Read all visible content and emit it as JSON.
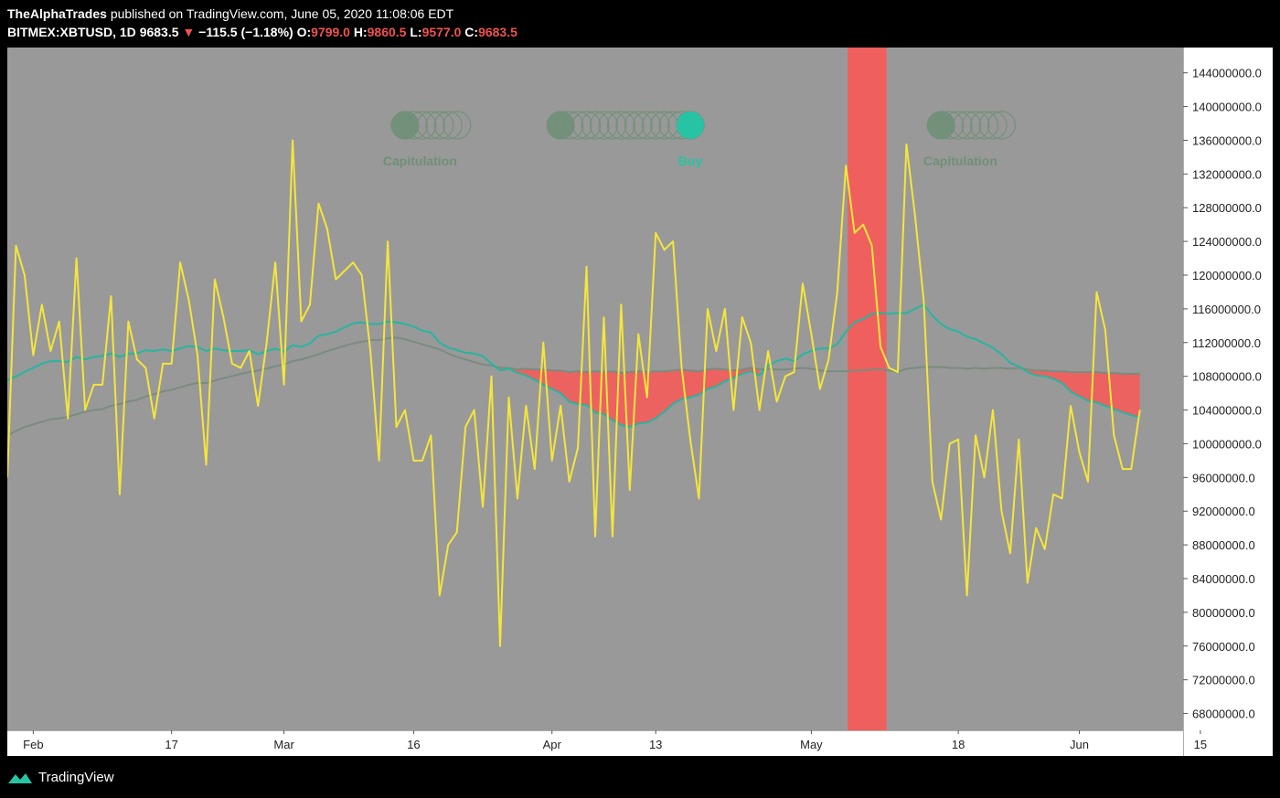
{
  "header": {
    "author": "TheAlphaTrades",
    "published": "published on TradingView.com, June 05, 2020 11:08:06 EDT",
    "symbol": "BITMEX:XBTUSD, 1D",
    "last": "9683.5",
    "change": "−115.5 (−1.18%)",
    "o_label": "O:",
    "o": "9799.0",
    "h_label": "H:",
    "h": "9860.5",
    "l_label": "L:",
    "l": "9577.0",
    "c_label": "C:",
    "c": "9683.5"
  },
  "footer": {
    "brand": "TradingView"
  },
  "colors": {
    "plot_bg": "#999999",
    "price_line": "#f5e63a",
    "fast_ma": "#26b5a0",
    "slow_ma": "#7a8c80",
    "fill": "#ef5f5d",
    "band": "#ef5f5d",
    "signal_dot": "#6f8f78",
    "signal_active": "#26c4a4"
  },
  "chart_data": {
    "type": "line",
    "ylim": [
      66000000,
      147000000
    ],
    "yticks": [
      "144000000.0",
      "140000000.0",
      "136000000.0",
      "132000000.0",
      "128000000.0",
      "124000000.0",
      "120000000.0",
      "116000000.0",
      "112000000.0",
      "108000000.0",
      "104000000.0",
      "100000000.0",
      "96000000.0",
      "92000000.0",
      "88000000.0",
      "84000000.0",
      "80000000.0",
      "76000000.0",
      "72000000.0",
      "68000000.0"
    ],
    "xlim": [
      0,
      136
    ],
    "xticks": [
      {
        "label": "Feb",
        "x": 3
      },
      {
        "label": "17",
        "x": 19
      },
      {
        "label": "Mar",
        "x": 32
      },
      {
        "label": "16",
        "x": 47
      },
      {
        "label": "Apr",
        "x": 63
      },
      {
        "label": "13",
        "x": 75
      },
      {
        "label": "May",
        "x": 93
      },
      {
        "label": "18",
        "x": 110
      },
      {
        "label": "Jun",
        "x": 124
      },
      {
        "label": "15",
        "x": 138
      }
    ],
    "series": [
      {
        "values": [
          96000000,
          123500000,
          120000000,
          110500000,
          116500000,
          111000000,
          114500000,
          103000000,
          122000000,
          104000000,
          107000000,
          107000000,
          117500000,
          94000000,
          114500000,
          110000000,
          109000000,
          103000000,
          109500000,
          109500000,
          121500000,
          117000000,
          110500000,
          97500000,
          119500000,
          115000000,
          109500000,
          109000000,
          111000000,
          104500000,
          112000000,
          121500000,
          107000000,
          136000000,
          114500000,
          116500000,
          128500000,
          125500000,
          119500000,
          120500000,
          121500000,
          120000000,
          111000000,
          98000000,
          124000000,
          102000000,
          104000000,
          98000000,
          98000000,
          101000000,
          82000000,
          88000000,
          89500000,
          102000000,
          104000000,
          92500000,
          108000000,
          76000000,
          105500000,
          93500000,
          104500000,
          97000000,
          112000000,
          98000000,
          104500000,
          95500000,
          99500000,
          121000000,
          89000000,
          115000000,
          89000000,
          116500000,
          94500000,
          113000000,
          105500000,
          125000000,
          123000000,
          124000000,
          109000000,
          100500000,
          93500000,
          116000000,
          111000000,
          116000000,
          104000000,
          115000000,
          112000000,
          104000000,
          111000000,
          105000000,
          108000000,
          108500000,
          119000000,
          113000000,
          106500000,
          110000000,
          118000000,
          133000000,
          125000000,
          126000000,
          123500000,
          111500000,
          109000000,
          108500000,
          135500000,
          127000000,
          117000000,
          95500000,
          91000000,
          100000000,
          100500000,
          82000000,
          101000000,
          96000000,
          104000000,
          92000000,
          87000000,
          100500000,
          83500000,
          90000000,
          87500000,
          94000000,
          93500000,
          104500000,
          99000000,
          95500000,
          118000000,
          113500000,
          101000000,
          97000000,
          97000000,
          104000000
        ]
      },
      {
        "values": [
          107500000,
          108000000,
          108500000,
          109000000,
          109500000,
          109800000,
          109800000,
          109700000,
          110300000,
          110000000,
          110300000,
          110400000,
          110700000,
          110300000,
          110700000,
          110700000,
          111100000,
          111000000,
          111200000,
          111000000,
          111300000,
          111600000,
          111500000,
          111000000,
          111300000,
          111100000,
          111000000,
          111000000,
          111100000,
          110600000,
          111000000,
          111300000,
          110900000,
          111700000,
          111500000,
          111900000,
          112800000,
          113000000,
          113300000,
          113800000,
          114300000,
          114400000,
          114200000,
          114200000,
          114500000,
          114400000,
          114200000,
          113900000,
          113400000,
          113200000,
          112000000,
          111400000,
          111100000,
          110800000,
          110700000,
          110400000,
          109500000,
          108700000,
          108900000,
          108400000,
          108100000,
          107600000,
          107000000,
          106500000,
          106000000,
          105000000,
          104700000,
          104600000,
          103700000,
          103500000,
          102800000,
          102200000,
          102000000,
          102400000,
          102500000,
          103000000,
          103800000,
          104700000,
          105300000,
          105500000,
          105800000,
          106500000,
          106800000,
          107400000,
          107800000,
          108300000,
          108600000,
          108100000,
          109300000,
          109800000,
          110100000,
          109800000,
          110600000,
          111000000,
          111300000,
          111300000,
          111800000,
          113300000,
          114400000,
          114800000,
          115400000,
          115500000,
          115400000,
          115500000,
          115500000,
          116000000,
          116500000,
          115200000,
          114200000,
          113600000,
          113300000,
          112700000,
          112400000,
          111900000,
          111400000,
          110600000,
          109600000,
          109200000,
          108500000,
          108100000,
          108000000,
          107700000,
          107200000,
          106200000,
          105600000,
          105100000,
          104900000,
          104500000,
          104100000,
          103700000,
          103400000,
          103100000
        ]
      },
      {
        "values": [
          101000000,
          101500000,
          102000000,
          102300000,
          102600000,
          102900000,
          103000000,
          103200000,
          103500000,
          103800000,
          104000000,
          104100000,
          104500000,
          104700000,
          105000000,
          105200000,
          105600000,
          105900000,
          106200000,
          106400000,
          106700000,
          107000000,
          107200000,
          107200000,
          107500000,
          107800000,
          108000000,
          108300000,
          108500000,
          108700000,
          108900000,
          109200000,
          109400000,
          109800000,
          110000000,
          110300000,
          110600000,
          111000000,
          111300000,
          111600000,
          111900000,
          112100000,
          112300000,
          112300000,
          112500000,
          112600000,
          112400000,
          112100000,
          111800000,
          111500000,
          111200000,
          110700000,
          110300000,
          110000000,
          109700000,
          109400000,
          109300000,
          109000000,
          109000000,
          108800000,
          108900000,
          108800000,
          108800000,
          108700000,
          108700000,
          108500000,
          108600000,
          108500000,
          108600000,
          108500000,
          108600000,
          108400000,
          108500000,
          108600000,
          108500000,
          108600000,
          108600000,
          108700000,
          108800000,
          108700000,
          108600000,
          108800000,
          108900000,
          108800000,
          108700000,
          108800000,
          109000000,
          108800000,
          108900000,
          108800000,
          108800000,
          108900000,
          109000000,
          108900000,
          108700000,
          108600000,
          108600000,
          108600000,
          108700000,
          108700000,
          108800000,
          108800000,
          108700000,
          108500000,
          108900000,
          109000000,
          109100000,
          109100000,
          109100000,
          109000000,
          109000000,
          108900000,
          109000000,
          108900000,
          109000000,
          109000000,
          108900000,
          109000000,
          108800000,
          108700000,
          108700000,
          108600000,
          108600000,
          108500000,
          108500000,
          108500000,
          108500000,
          108400000,
          108400000,
          108300000,
          108300000,
          108300000
        ]
      }
    ],
    "band": {
      "x0": 97.2,
      "x1": 101.7
    },
    "signals": [
      {
        "label": "Capitulation",
        "x0": 46,
        "x1": 52,
        "active": false
      },
      {
        "label": "",
        "x0": 64,
        "x1": 79,
        "active": false
      },
      {
        "label": "Buy",
        "x0": 79,
        "x1": 79,
        "active": true
      },
      {
        "label": "Capitulation",
        "x0": 108,
        "x1": 115,
        "active": false
      }
    ]
  }
}
